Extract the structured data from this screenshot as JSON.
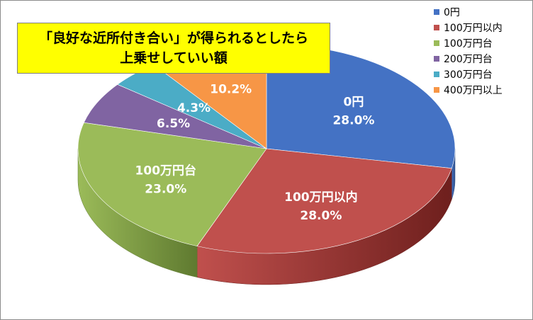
{
  "chart_data": {
    "type": "pie",
    "title_lines": [
      "「良好な近所付き合い」が得られるとしたら",
      "上乗せしていい額"
    ],
    "categories": [
      "0円",
      "100万円以内",
      "100万円台",
      "200万円台",
      "300万円台",
      "400万円以上"
    ],
    "values": [
      28.0,
      28.0,
      23.0,
      6.5,
      4.3,
      10.2
    ],
    "data_labels": [
      "28.0%",
      "28.0%",
      "23.0%",
      "6.5%",
      "4.3%",
      "10.2%"
    ],
    "show_category_in_label": [
      true,
      true,
      true,
      false,
      false,
      false
    ],
    "colors": [
      "#4472c4",
      "#c0504d",
      "#9bbb59",
      "#8064a2",
      "#4bacc6",
      "#f79646"
    ],
    "dark_colors": [
      "#2f4f88",
      "#6e1f1d",
      "#5f7a30",
      "#4e3b66",
      "#2a7385",
      "#b5651c"
    ],
    "legend_position": "right",
    "style": "3d-pie"
  }
}
